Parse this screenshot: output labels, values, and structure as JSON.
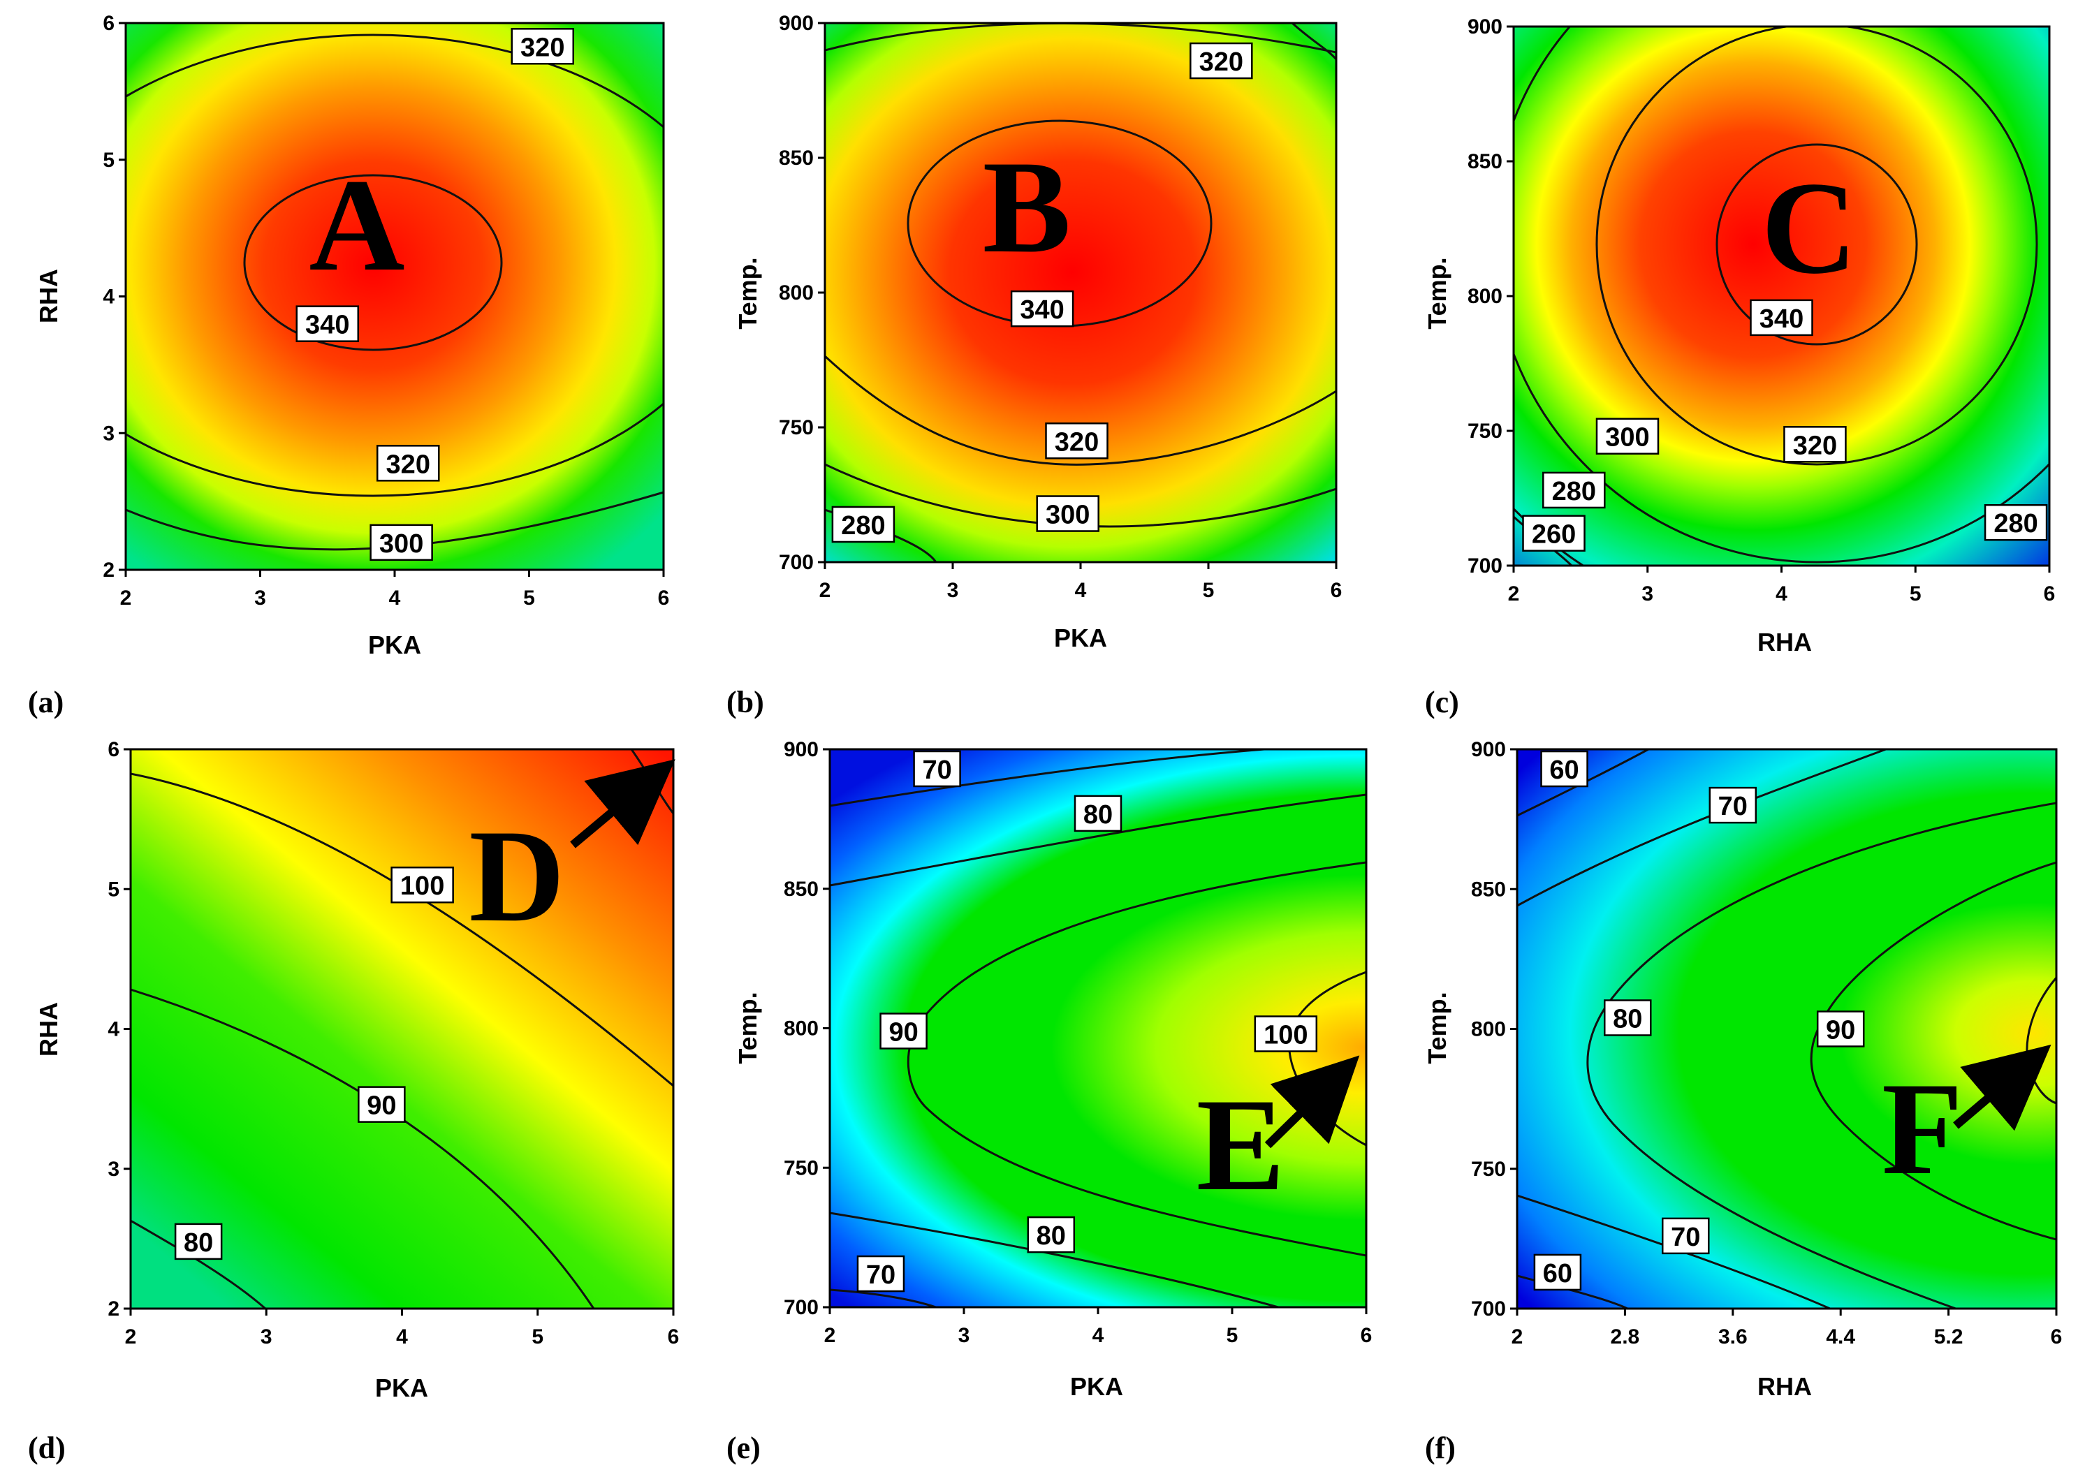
{
  "figure": {
    "description_labels": [
      "(a)",
      "(b)",
      "(c)",
      "(d)",
      "(e)",
      "(f)"
    ]
  },
  "chart_data": [
    {
      "id": "a",
      "type": "contour",
      "panel_label": "(a)",
      "letter": "A",
      "xlabel": "PKA",
      "ylabel": "RHA",
      "xlim": [
        2,
        6
      ],
      "ylim": [
        2,
        6
      ],
      "xticks": [
        "2",
        "3",
        "4",
        "5",
        "6"
      ],
      "yticks": [
        "2",
        "3",
        "4",
        "5",
        "6"
      ],
      "contour_labels": [
        {
          "text": "320",
          "x": 5.1,
          "y": 5.83
        },
        {
          "text": "340",
          "x": 3.5,
          "y": 3.8
        },
        {
          "text": "320",
          "x": 4.1,
          "y": 2.78
        },
        {
          "text": "300",
          "x": 4.05,
          "y": 2.2
        }
      ],
      "letter_pos": {
        "x": 3.7,
        "y": 4.45
      }
    },
    {
      "id": "b",
      "type": "contour",
      "panel_label": "(b)",
      "letter": "B",
      "xlabel": "PKA",
      "ylabel": "Temp.",
      "xlim": [
        2,
        6
      ],
      "ylim": [
        700,
        900
      ],
      "xticks": [
        "2",
        "3",
        "4",
        "5",
        "6"
      ],
      "yticks": [
        "700",
        "750",
        "800",
        "850",
        "900"
      ],
      "contour_labels": [
        {
          "text": "320",
          "x": 5.1,
          "y": 886
        },
        {
          "text": "340",
          "x": 3.7,
          "y": 794
        },
        {
          "text": "320",
          "x": 3.97,
          "y": 745
        },
        {
          "text": "300",
          "x": 3.9,
          "y": 718
        },
        {
          "text": "280",
          "x": 2.3,
          "y": 714
        }
      ],
      "letter_pos": {
        "x": 3.3,
        "y": 830
      }
    },
    {
      "id": "c",
      "type": "contour",
      "panel_label": "(c)",
      "letter": "C",
      "xlabel": "RHA",
      "ylabel": "Temp.",
      "xlim": [
        2,
        6
      ],
      "ylim": [
        700,
        900
      ],
      "xticks": [
        "2",
        "3",
        "4",
        "5",
        "6"
      ],
      "yticks": [
        "700",
        "750",
        "800",
        "850",
        "900"
      ],
      "contour_labels": [
        {
          "text": "340",
          "x": 4.0,
          "y": 792
        },
        {
          "text": "320",
          "x": 4.25,
          "y": 745
        },
        {
          "text": "300",
          "x": 2.85,
          "y": 748
        },
        {
          "text": "280",
          "x": 2.45,
          "y": 728
        },
        {
          "text": "260",
          "x": 2.3,
          "y": 712
        },
        {
          "text": "280",
          "x": 5.75,
          "y": 716
        }
      ],
      "letter_pos": {
        "x": 4.2,
        "y": 822
      }
    },
    {
      "id": "d",
      "type": "contour",
      "panel_label": "(d)",
      "letter": "D",
      "xlabel": "PKA",
      "ylabel": "RHA",
      "xlim": [
        2,
        6
      ],
      "ylim": [
        2,
        6
      ],
      "xticks": [
        "2",
        "3",
        "4",
        "5",
        "6"
      ],
      "yticks": [
        "2",
        "3",
        "4",
        "5",
        "6"
      ],
      "contour_labels": [
        {
          "text": "100",
          "x": 4.15,
          "y": 5.03
        },
        {
          "text": "90",
          "x": 3.85,
          "y": 3.46
        },
        {
          "text": "80",
          "x": 2.5,
          "y": 2.48
        }
      ],
      "letter_pos": {
        "x": 4.85,
        "y": 5.0
      }
    },
    {
      "id": "e",
      "type": "contour",
      "panel_label": "(e)",
      "letter": "E",
      "xlabel": "PKA",
      "ylabel": "Temp.",
      "xlim": [
        2,
        6
      ],
      "ylim": [
        700,
        900
      ],
      "xticks": [
        "2",
        "3",
        "4",
        "5",
        "6"
      ],
      "yticks": [
        "700",
        "750",
        "800",
        "850",
        "900"
      ],
      "contour_labels": [
        {
          "text": "70",
          "x": 2.8,
          "y": 893
        },
        {
          "text": "80",
          "x": 4.0,
          "y": 877
        },
        {
          "text": "90",
          "x": 2.55,
          "y": 799
        },
        {
          "text": "100",
          "x": 5.4,
          "y": 798
        },
        {
          "text": "80",
          "x": 3.65,
          "y": 726
        },
        {
          "text": "70",
          "x": 2.38,
          "y": 712
        }
      ],
      "letter_pos": {
        "x": 5.1,
        "y": 757
      }
    },
    {
      "id": "f",
      "type": "contour",
      "panel_label": "(f)",
      "letter": "F",
      "xlabel": "RHA",
      "ylabel": "Temp.",
      "xlim": [
        2,
        6
      ],
      "ylim": [
        700,
        900
      ],
      "xticks": [
        "2",
        "2.8",
        "3.6",
        "4.4",
        "5.2",
        "6"
      ],
      "yticks": [
        "700",
        "750",
        "800",
        "850",
        "900"
      ],
      "contour_labels": [
        {
          "text": "60",
          "x": 2.35,
          "y": 893
        },
        {
          "text": "70",
          "x": 3.6,
          "y": 880
        },
        {
          "text": "80",
          "x": 2.82,
          "y": 804
        },
        {
          "text": "90",
          "x": 4.4,
          "y": 800
        },
        {
          "text": "70",
          "x": 3.25,
          "y": 726
        },
        {
          "text": "60",
          "x": 2.3,
          "y": 713
        }
      ],
      "letter_pos": {
        "x": 5.45,
        "y": 757
      }
    }
  ],
  "colors": {
    "red": "#ff0000",
    "orange": "#ff9900",
    "yellow": "#ffff00",
    "green": "#00e600",
    "cyan": "#00ffff",
    "blue": "#0000dd",
    "line": "#111111"
  }
}
